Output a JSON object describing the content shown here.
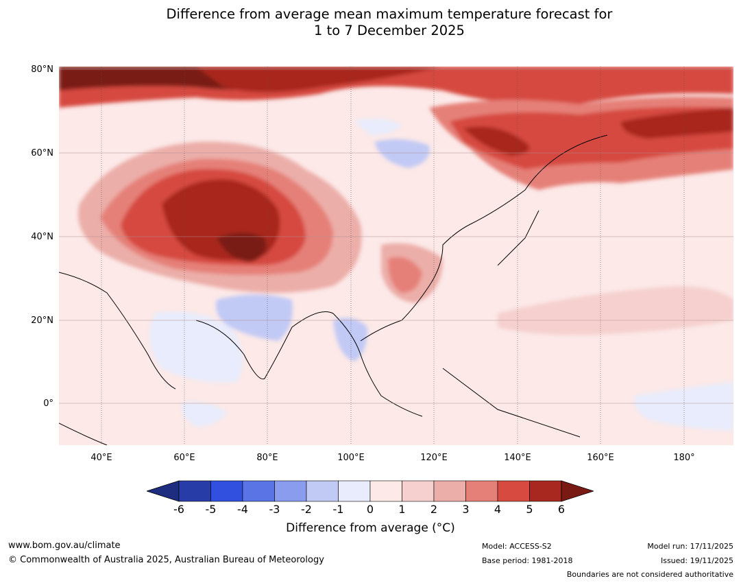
{
  "title": {
    "line1": "Difference from average mean maximum temperature forecast for",
    "line2": "1 to 7 December 2025"
  },
  "map": {
    "region": "Asia",
    "lat_labels": [
      "80°N",
      "60°N",
      "40°N",
      "20°N",
      "0°"
    ],
    "lon_labels": [
      "40°E",
      "60°E",
      "80°E",
      "100°E",
      "120°E",
      "140°E",
      "160°E",
      "180°"
    ]
  },
  "colorbar": {
    "label": "Difference from average (°C)",
    "ticks": [
      "-6",
      "-5",
      "-4",
      "-3",
      "-2",
      "-1",
      "0",
      "1",
      "2",
      "3",
      "4",
      "5",
      "6"
    ],
    "colors": [
      "#1f2d80",
      "#283ca8",
      "#3250e0",
      "#5a74e6",
      "#8a9ced",
      "#c1c9f5",
      "#e8ecfc",
      "#fce9e8",
      "#f5d0ce",
      "#ecaea9",
      "#e58078",
      "#d64a40",
      "#a8281f",
      "#7a1a15"
    ]
  },
  "footer": {
    "website": "www.bom.gov.au/climate",
    "copyright": "© Commonwealth of Australia 2025, Australian Bureau of Meteorology",
    "model": "Model: ACCESS-S2",
    "base_period": "Base period: 1981-2018",
    "model_run": "Model run: 17/11/2025",
    "issued": "Issued: 19/11/2025",
    "disclaimer": "Boundaries are not considered authoritative"
  }
}
